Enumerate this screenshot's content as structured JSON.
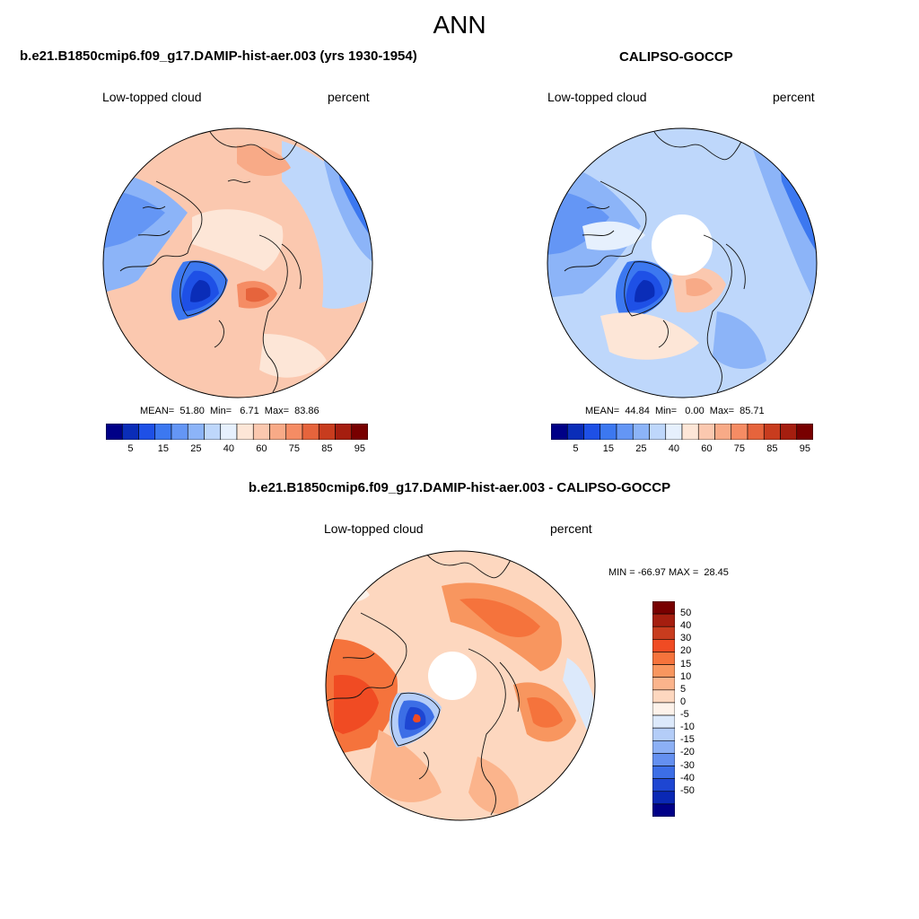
{
  "page_title": "ANN",
  "panels": {
    "model": {
      "title": "b.e21.B1850cmip6.f09_g17.DAMIP-hist-aer.003 (yrs 1930-1954)",
      "variable": "Low-topped cloud",
      "units": "percent",
      "stats": "MEAN=  51.80  Min=   6.71  Max=  83.86",
      "colorbar_ticks": [
        "5",
        "15",
        "25",
        "40",
        "60",
        "75",
        "85",
        "95"
      ]
    },
    "obs": {
      "title": "CALIPSO-GOCCP",
      "variable": "Low-topped cloud",
      "units": "percent",
      "stats": "MEAN=  44.84  Min=   0.00  Max=  85.71",
      "colorbar_ticks": [
        "5",
        "15",
        "25",
        "40",
        "60",
        "75",
        "85",
        "95"
      ]
    },
    "diff": {
      "title": "b.e21.B1850cmip6.f09_g17.DAMIP-hist-aer.003 - CALIPSO-GOCCP",
      "variable": "Low-topped cloud",
      "units": "percent",
      "stats": "MIN = -66.97 MAX =  28.45",
      "colorbar_ticks": [
        "50",
        "40",
        "30",
        "20",
        "15",
        "10",
        "5",
        "0",
        "-5",
        "-10",
        "-15",
        "-20",
        "-30",
        "-40",
        "-50"
      ]
    }
  },
  "colors": {
    "seq": [
      "#000087",
      "#0a2db8",
      "#1e50e6",
      "#3c78f0",
      "#6496f5",
      "#8cb4f8",
      "#bed7fb",
      "#e6f0fd",
      "#fde6d7",
      "#fbc8af",
      "#f8aa87",
      "#f58c64",
      "#e6643c",
      "#c83c1e",
      "#a51e0f",
      "#780000"
    ],
    "diff": [
      "#780000",
      "#a51e0f",
      "#c83c1e",
      "#f04b23",
      "#f5733c",
      "#f8965f",
      "#fbb48c",
      "#fdd7bf",
      "#fdf2ea",
      "#dce9fb",
      "#b4cdf8",
      "#8cb0f5",
      "#6490f0",
      "#3c6ee6",
      "#1e46d2",
      "#0a28b4",
      "#000087"
    ]
  }
}
